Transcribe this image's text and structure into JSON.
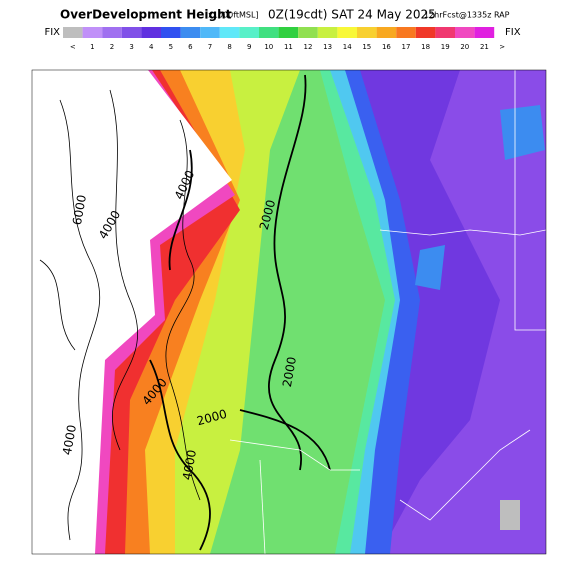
{
  "header": {
    "title": "OverDevelopment Height",
    "units": "[x1000ftMSL]",
    "time": "0Z(19cdt) SAT 24 May 2025",
    "run": "12hrFcst@1335z RAP"
  },
  "legend": {
    "left": "FIX",
    "right": "FIX",
    "end": ">",
    "items": [
      {
        "label": "<",
        "color": "#bebebe"
      },
      {
        "label": "1",
        "color": "#c090f8"
      },
      {
        "label": "2",
        "color": "#a070f0"
      },
      {
        "label": "3",
        "color": "#8050e8"
      },
      {
        "label": "4",
        "color": "#6030e0"
      },
      {
        "label": "5",
        "color": "#3050f0"
      },
      {
        "label": "6",
        "color": "#3c8cf0"
      },
      {
        "label": "7",
        "color": "#50b8f8"
      },
      {
        "label": "8",
        "color": "#60e8f8"
      },
      {
        "label": "9",
        "color": "#58f0c8"
      },
      {
        "label": "10",
        "color": "#40e080"
      },
      {
        "label": "11",
        "color": "#30d040"
      },
      {
        "label": "12",
        "color": "#90e050"
      },
      {
        "label": "13",
        "color": "#c8f040"
      },
      {
        "label": "14",
        "color": "#f8f838"
      },
      {
        "label": "15",
        "color": "#f8d030"
      },
      {
        "label": "16",
        "color": "#f8a820"
      },
      {
        "label": "17",
        "color": "#f87820"
      },
      {
        "label": "18",
        "color": "#f03828"
      },
      {
        "label": "19",
        "color": "#f03870"
      },
      {
        "label": "20",
        "color": "#f048c0"
      },
      {
        "label": "21",
        "color": "#e020e0"
      }
    ]
  },
  "contour_labels": [
    "6000",
    "4000",
    "4000",
    "2000",
    "2000",
    "4000",
    "2000",
    "4000",
    "4000"
  ]
}
